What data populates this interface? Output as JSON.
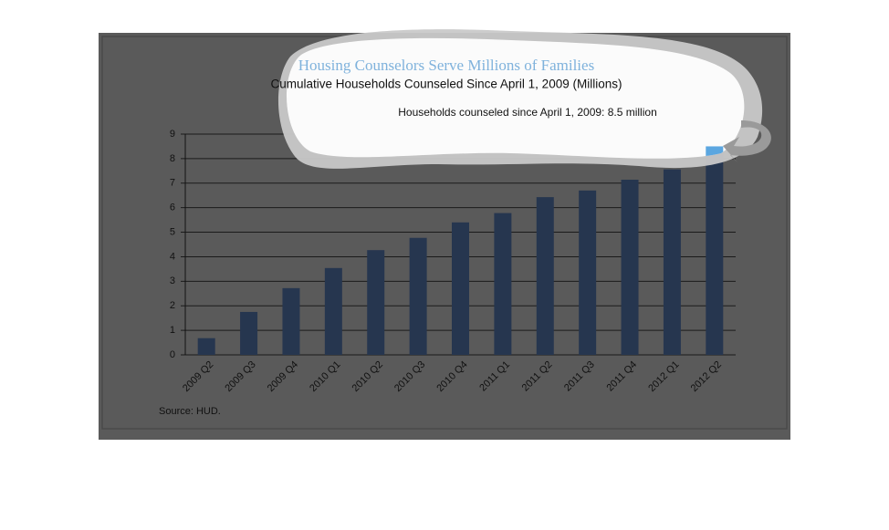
{
  "chart_data": {
    "type": "bar",
    "title": "Housing Counselors Serve Millions of Families",
    "subtitle": "Cumulative Households Counseled Since April 1, 2009 (Millions)",
    "annotation": "Households counseled  since  April 1, 2009: 8.5 million",
    "source": "Source:  HUD.",
    "categories": [
      "2009 Q2",
      "2009 Q3",
      "2009 Q4",
      "2010 Q1",
      "2010 Q2",
      "2010 Q3",
      "2010 Q4",
      "2011 Q1",
      "2011 Q2",
      "2011 Q3",
      "2011 Q4",
      "2012 Q1",
      "2012 Q2"
    ],
    "values": [
      0.68,
      1.75,
      2.72,
      3.54,
      4.27,
      4.77,
      5.4,
      5.78,
      6.43,
      6.7,
      7.14,
      7.56,
      8.5
    ],
    "color": "#26364f",
    "ylim": [
      0,
      9
    ],
    "yticks": [
      0,
      1,
      2,
      3,
      4,
      5,
      6,
      7,
      8,
      9
    ],
    "grid": true
  }
}
